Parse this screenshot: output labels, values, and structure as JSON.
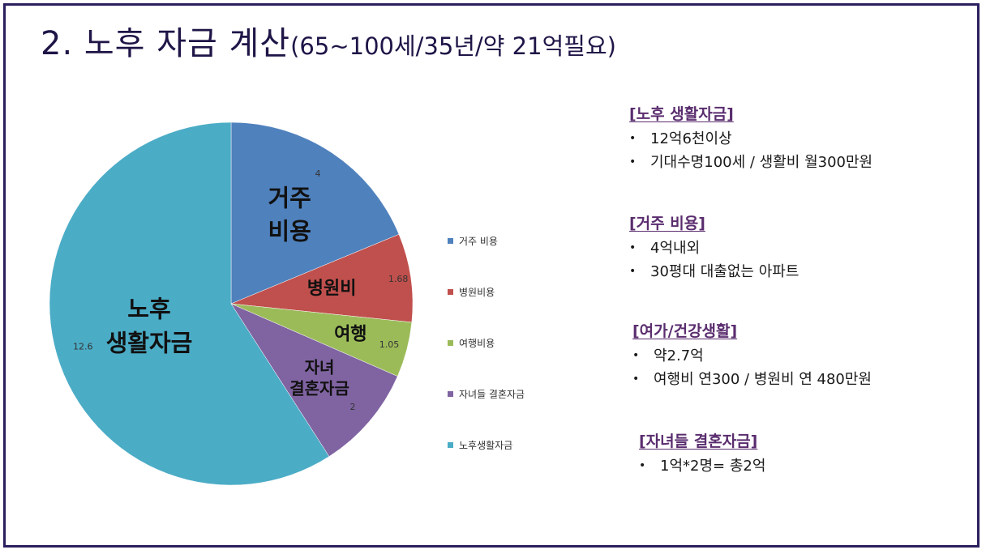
{
  "title": {
    "main": "2. 노후 자금 계산",
    "sub": "(65~100세/35년/약 21억필요)"
  },
  "chart_data": {
    "type": "pie",
    "categories": [
      "거주 비용",
      "병원비용",
      "여행비용",
      "자녀들 결혼자금",
      "노후생활자금"
    ],
    "values": [
      4,
      1.68,
      1.05,
      2,
      12.6
    ],
    "value_labels": [
      "4",
      "1.68",
      "1.05",
      "2",
      "12.6"
    ],
    "slice_labels": [
      [
        "거주",
        "비용"
      ],
      [
        "병원비"
      ],
      [
        "여행"
      ],
      [
        "자녀",
        "결혼자금"
      ],
      [
        "노후",
        "생활자금"
      ]
    ],
    "colors": [
      "#4f81bd",
      "#c0504d",
      "#9bbb59",
      "#8064a2",
      "#4bacc6"
    ],
    "legend_position": "right"
  },
  "legend": {
    "items": [
      "거주 비용",
      "병원비용",
      "여행비용",
      "자녀들 결혼자금",
      "노후생활자금"
    ]
  },
  "info": [
    {
      "title": "[노후 생활자금]",
      "items": [
        "12억6천이상",
        "기대수명100세 / 생활비 월300만원"
      ]
    },
    {
      "title": "[거주 비용]",
      "items": [
        "4억내외",
        "30평대 대출없는 아파트"
      ]
    },
    {
      "title": "[여가/건강생활]",
      "items": [
        "약2.7억",
        "여행비 연300 / 병원비 연 480만원"
      ]
    },
    {
      "title": "[자녀들 결혼자금]",
      "items": [
        "1억*2명= 총2억"
      ]
    }
  ],
  "bullet_char": "•"
}
